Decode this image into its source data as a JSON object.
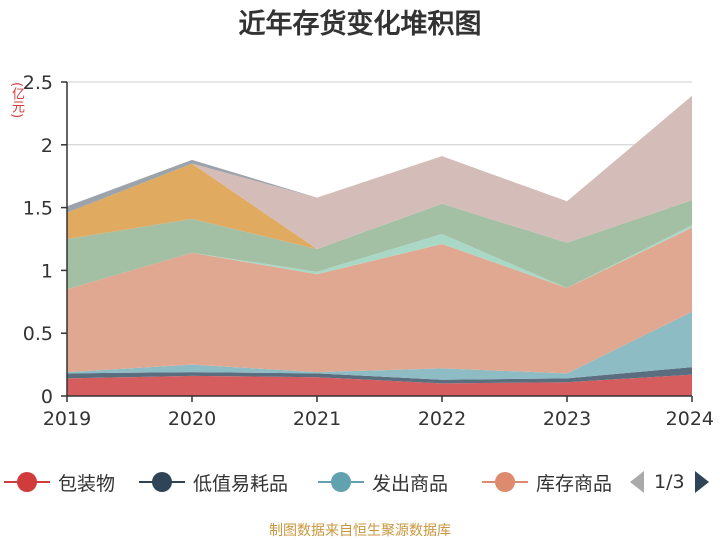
{
  "chart_data": {
    "type": "area",
    "stacked": true,
    "title": "近年存货变化堆积图",
    "y_unit": "(亿元)",
    "x": [
      "2019",
      "2020",
      "2021",
      "2022",
      "2023",
      "2024"
    ],
    "ylim": [
      0,
      2.5
    ],
    "yticks": [
      "0",
      "0.5",
      "1",
      "1.5",
      "2",
      "2.5"
    ],
    "grid": true,
    "legend_position": "bottom",
    "series": [
      {
        "name": "包装物",
        "color": "#d65d5d",
        "values": [
          0.14,
          0.16,
          0.15,
          0.1,
          0.11,
          0.17
        ]
      },
      {
        "name": "低值易耗品",
        "color": "#5a6e80",
        "values": [
          0.04,
          0.03,
          0.03,
          0.03,
          0.03,
          0.06
        ]
      },
      {
        "name": "发出商品",
        "color": "#8ebcc4",
        "values": [
          0.01,
          0.06,
          0.01,
          0.09,
          0.04,
          0.44
        ]
      },
      {
        "name": "库存商品",
        "color": "#e0a890",
        "values": [
          0.66,
          0.89,
          0.78,
          0.99,
          0.68,
          0.67
        ]
      },
      {
        "name": "",
        "color": "#a9d9c6",
        "values": [
          0.0,
          0.0,
          0.02,
          0.08,
          0.0,
          0.02
        ]
      },
      {
        "name": "",
        "color": "#a3bfa4",
        "values": [
          0.4,
          0.27,
          0.18,
          0.24,
          0.36,
          0.2
        ]
      },
      {
        "name": "",
        "color": "#e0aa60",
        "values": [
          0.21,
          0.44,
          0.0,
          0.0,
          0.0,
          0.0
        ]
      },
      {
        "name": "",
        "color": "#d4bdb8",
        "values": [
          0.0,
          0.0,
          0.41,
          0.38,
          0.33,
          0.83
        ]
      },
      {
        "name": "",
        "color": "#9da3ab",
        "values": [
          0.05,
          0.03,
          0.0,
          0.0,
          0.0,
          0.0
        ]
      }
    ]
  },
  "legend": {
    "items": [
      {
        "label": "包装物",
        "color": "#d03c3c"
      },
      {
        "label": "低值易耗品",
        "color": "#2f4557"
      },
      {
        "label": "发出商品",
        "color": "#62a2ae"
      },
      {
        "label": "库存商品",
        "color": "#dd8a6e"
      }
    ],
    "page": "1/3",
    "prev_icon": "triangle-left-icon",
    "next_icon": "triangle-right-icon"
  },
  "footer": {
    "source": "制图数据来自恒生聚源数据库"
  }
}
